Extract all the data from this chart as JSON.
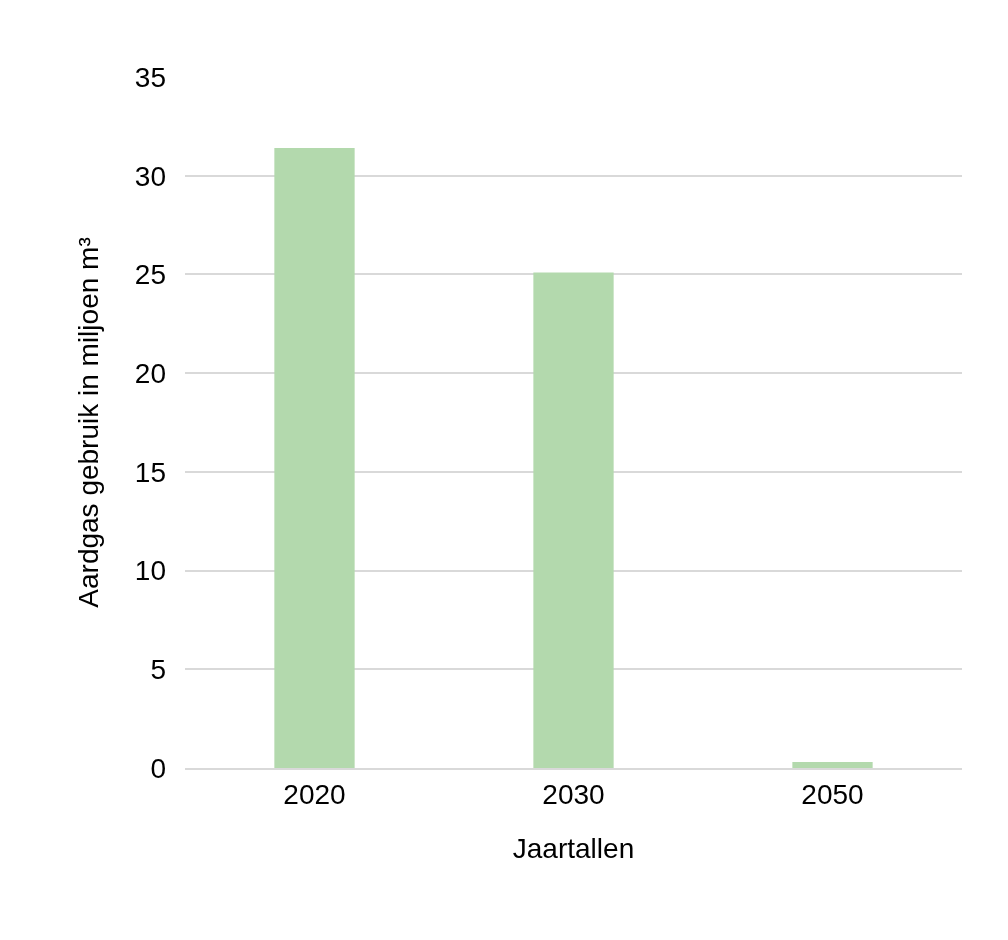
{
  "chart_data": {
    "type": "bar",
    "xlabel": "Jaartallen",
    "ylabel": "Aardgas gebruik in miljoen m³",
    "categories": [
      "2020",
      "2030",
      "2050"
    ],
    "values": [
      31.4,
      25.1,
      0.3
    ],
    "color": "#b3d9ad",
    "ylim": [
      0,
      35
    ],
    "yticks": [
      0,
      5,
      10,
      15,
      20,
      25,
      30,
      35
    ],
    "grid": "y"
  }
}
